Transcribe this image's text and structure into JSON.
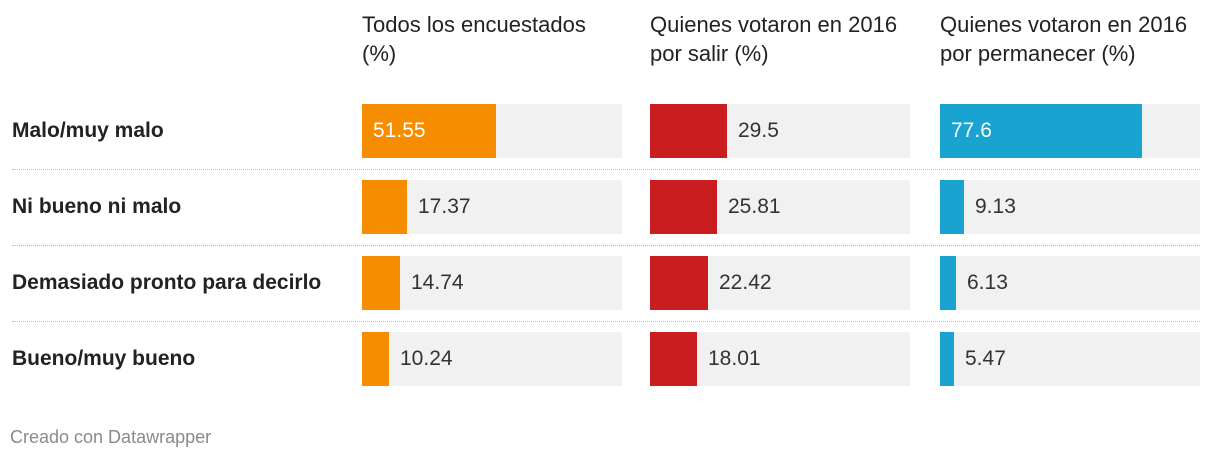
{
  "chart_data": {
    "type": "bar",
    "title": "",
    "columns": [
      {
        "name": "Todos los encuestados (%)",
        "color": "#f68d00"
      },
      {
        "name": "Quienes votaron en 2016 por salir (%)",
        "color": "#c91d1f"
      },
      {
        "name": "Quienes votaron en 2016 por permanecer (%)",
        "color": "#19a3d1"
      }
    ],
    "categories": [
      "Malo/muy malo",
      "Ni bueno ni malo",
      "Demasiado pronto para decirlo",
      "Bueno/muy bueno"
    ],
    "series": [
      {
        "name": "Todos los encuestados (%)",
        "values": [
          "51.55",
          "17.37",
          "14.74",
          "10.24"
        ]
      },
      {
        "name": "Quienes votaron en 2016 por salir (%)",
        "values": [
          "29.5",
          "25.81",
          "22.42",
          "18.01"
        ]
      },
      {
        "name": "Quienes votaron en 2016 por permanecer (%)",
        "values": [
          "77.6",
          "9.13",
          "6.13",
          "5.47"
        ]
      }
    ],
    "xlim": [
      0,
      100
    ]
  },
  "footer": "Creado con Datawrapper"
}
